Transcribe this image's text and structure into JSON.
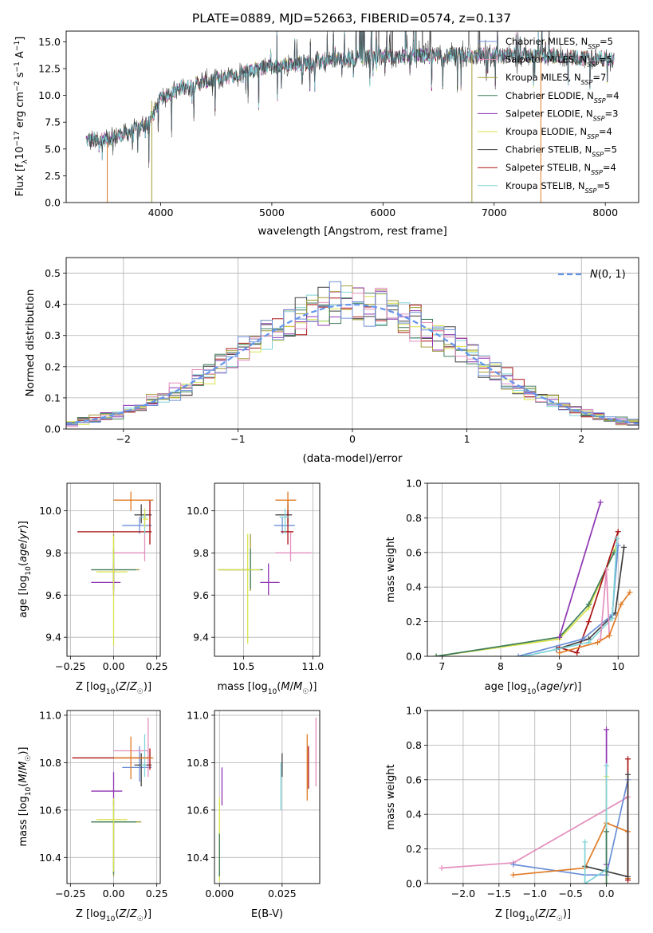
{
  "figure": {
    "title": "PLATE=0889, MJD=52663, FIBERID=0574, z=0.137"
  },
  "colors": {
    "Chabrier MILES": "#6b8fd8",
    "Salpeter MILES": "#e48ebd",
    "Kroupa MILES": "#a19b36",
    "Chabrier ELODIE": "#3f7d5b",
    "Salpeter ELODIE": "#8f35b3",
    "Kroupa ELODIE": "#d9e34a",
    "Chabrier STELIB": "#404040",
    "Salpeter STELIB": "#aa1111",
    "Kroupa STELIB": "#7fd3d8",
    "gaussian": "#6495ed",
    "orange": "#e07b25"
  },
  "chart_data": [
    {
      "id": "spectrum",
      "type": "line",
      "xlabel": "wavelength [Angstrom, rest frame]",
      "ylabel": "Flux [f_λ10^-17 erg cm^-2 s^-1 A^-1]",
      "xlim": [
        3150,
        8300
      ],
      "ylim": [
        0,
        16
      ],
      "xticks": [
        4000,
        5000,
        6000,
        7000,
        8000
      ],
      "yticks": [
        0.0,
        2.5,
        5.0,
        7.5,
        10.0,
        12.5,
        15.0
      ],
      "grid": false,
      "legend": "upper right",
      "series_names": [
        "Chabrier MILES, N_SSP=5",
        "Salpeter MILES, N_SSP=5",
        "Kroupa MILES, N_SSP=7",
        "Chabrier ELODIE, N_SSP=4",
        "Salpeter ELODIE, N_SSP=3",
        "Kroupa ELODIE, N_SSP=4",
        "Chabrier STELIB, N_SSP=5",
        "Salpeter STELIB, N_SSP=4",
        "Kroupa STELIB, N_SSP=5"
      ],
      "continuum": {
        "x": [
          3330,
          3500,
          3700,
          3900,
          4000,
          4200,
          4500,
          4800,
          5000,
          5300,
          5600,
          6000,
          6500,
          7000,
          7500,
          8000,
          8080
        ],
        "y": [
          5.8,
          5.9,
          6.5,
          7.5,
          9.8,
          10.8,
          11.5,
          12.3,
          12.7,
          13.0,
          13.3,
          13.7,
          13.7,
          13.8,
          13.7,
          13.4,
          13.3
        ]
      },
      "dropouts": [
        3520,
        3920,
        6800,
        7420
      ]
    },
    {
      "id": "residuals",
      "type": "line",
      "xlabel": "(data-model)/error",
      "ylabel": "Normed distribution",
      "xlim": [
        -2.5,
        2.5
      ],
      "ylim": [
        0,
        0.55
      ],
      "xticks": [
        -2,
        -1,
        0,
        1,
        2
      ],
      "yticks": [
        0.0,
        0.1,
        0.2,
        0.3,
        0.4,
        0.5
      ],
      "grid": true,
      "legend": "upper right",
      "gaussian_label": "N(0,1)",
      "bin_width": 0.1
    },
    {
      "id": "age-vs-Z",
      "type": "scatter",
      "xlabel": "Z [log10(Z/Z☉)]",
      "ylabel": "age  [log10(age/yr)]",
      "xlim": [
        -0.27,
        0.27
      ],
      "ylim": [
        9.31,
        10.13
      ],
      "xticks": [
        -0.25,
        0.0,
        0.25
      ],
      "yticks": [
        9.4,
        9.6,
        9.8,
        10.0
      ],
      "grid": true,
      "points": [
        {
          "model": "Chabrier MILES",
          "x": 0.15,
          "y": 9.93,
          "xerr": [
            0.1,
            0.07
          ],
          "yerr": [
            0.04,
            0.04
          ]
        },
        {
          "model": "Salpeter MILES",
          "x": 0.18,
          "y": 9.8,
          "xerr": [
            0.18,
            0.0
          ],
          "yerr": [
            0.04,
            0.1
          ]
        },
        {
          "model": "Kroupa MILES",
          "x": 0.0,
          "y": 9.72,
          "xerr": [
            0.13,
            0.15
          ],
          "yerr": [
            0.1,
            0.17
          ]
        },
        {
          "model": "Chabrier ELODIE",
          "x": 0.0,
          "y": 9.72,
          "xerr": [
            0.13,
            0.13
          ],
          "yerr": [
            0.09,
            0.1
          ]
        },
        {
          "model": "Salpeter ELODIE",
          "x": 0.0,
          "y": 9.66,
          "xerr": [
            0.13,
            0.04
          ],
          "yerr": [
            0.06,
            0.09
          ]
        },
        {
          "model": "Kroupa ELODIE",
          "x": 0.0,
          "y": 9.71,
          "xerr": [
            0.1,
            0.08
          ],
          "yerr": [
            0.35,
            0.17
          ]
        },
        {
          "model": "Chabrier STELIB",
          "x": 0.16,
          "y": 9.98,
          "xerr": [
            0.04,
            0.06
          ],
          "yerr": [
            0.04,
            0.05
          ]
        },
        {
          "model": "Salpeter STELIB",
          "x": 0.21,
          "y": 9.9,
          "xerr": [
            0.42,
            0.01
          ],
          "yerr": [
            0.06,
            0.15
          ]
        },
        {
          "model": "Kroupa STELIB",
          "x": 0.18,
          "y": 9.97,
          "xerr": [
            0.02,
            0.01
          ],
          "yerr": [
            0.08,
            0.04
          ]
        },
        {
          "model": "orange",
          "x": 0.1,
          "y": 10.05,
          "xerr": [
            0.1,
            0.13
          ],
          "yerr": [
            0.05,
            0.04
          ]
        },
        {
          "model": "Kroupa ELODIE",
          "x": 0.18,
          "y": 9.96,
          "xerr": [
            0.01,
            0.02
          ],
          "yerr": [
            0.04,
            0.05
          ]
        }
      ]
    },
    {
      "id": "age-vs-mass",
      "type": "scatter",
      "xlabel": "mass [log10(M/M☉)]",
      "ylabel": "",
      "xlim": [
        10.29,
        11.05
      ],
      "ylim": [
        9.31,
        10.13
      ],
      "xticks": [
        10.5,
        11.0
      ],
      "yticks": [
        9.4,
        9.6,
        9.8,
        10.0
      ],
      "grid": true,
      "points": [
        {
          "model": "Chabrier MILES",
          "x": 10.78,
          "y": 9.93,
          "xerr": [
            0.06,
            0.09
          ],
          "yerr": [
            0.04,
            0.04
          ]
        },
        {
          "model": "Salpeter MILES",
          "x": 10.84,
          "y": 9.8,
          "xerr": [
            0.11,
            0.15
          ],
          "yerr": [
            0.04,
            0.1
          ]
        },
        {
          "model": "Kroupa MILES",
          "x": 10.55,
          "y": 9.72,
          "xerr": [
            0.23,
            0.0
          ],
          "yerr": [
            0.1,
            0.17
          ]
        },
        {
          "model": "Chabrier ELODIE",
          "x": 10.55,
          "y": 9.72,
          "xerr": [
            0.22,
            0.09
          ],
          "yerr": [
            0.09,
            0.1
          ]
        },
        {
          "model": "Salpeter ELODIE",
          "x": 10.68,
          "y": 9.66,
          "xerr": [
            0.06,
            0.08
          ],
          "yerr": [
            0.06,
            0.09
          ]
        },
        {
          "model": "Kroupa ELODIE",
          "x": 10.53,
          "y": 9.72,
          "xerr": [
            0.22,
            0.09
          ],
          "yerr": [
            0.35,
            0.17
          ]
        },
        {
          "model": "Chabrier STELIB",
          "x": 10.82,
          "y": 9.98,
          "xerr": [
            0.09,
            0.03
          ],
          "yerr": [
            0.04,
            0.05
          ]
        },
        {
          "model": "Salpeter STELIB",
          "x": 10.82,
          "y": 9.9,
          "xerr": [
            0.05,
            0.04
          ],
          "yerr": [
            0.06,
            0.15
          ]
        },
        {
          "model": "Kroupa STELIB",
          "x": 10.8,
          "y": 9.97,
          "xerr": [
            0.04,
            0.03
          ],
          "yerr": [
            0.08,
            0.04
          ]
        },
        {
          "model": "orange",
          "x": 10.82,
          "y": 10.05,
          "xerr": [
            0.09,
            0.06
          ],
          "yerr": [
            0.05,
            0.04
          ]
        }
      ]
    },
    {
      "id": "weight-vs-age",
      "type": "line",
      "xlabel": "age  [log10(age/yr)]",
      "ylabel": "mass weight",
      "xlim": [
        6.75,
        10.35
      ],
      "ylim": [
        0,
        1.0
      ],
      "xticks": [
        7,
        8,
        9,
        10
      ],
      "yticks": [
        0.0,
        0.2,
        0.4,
        0.6,
        0.8,
        1.0
      ],
      "grid": true,
      "series": [
        {
          "model": "Kroupa ELODIE",
          "x": [
            6.9,
            9.0,
            9.5,
            9.95
          ],
          "y": [
            0.0,
            0.1,
            0.28,
            0.62
          ]
        },
        {
          "model": "Chabrier ELODIE",
          "x": [
            6.9,
            9.0,
            9.5,
            9.93
          ],
          "y": [
            0.0,
            0.11,
            0.3,
            0.6
          ]
        },
        {
          "model": "Salpeter ELODIE",
          "x": [
            9.0,
            9.7
          ],
          "y": [
            0.11,
            0.89
          ]
        },
        {
          "model": "Salpeter STELIB",
          "x": [
            9.0,
            9.3,
            9.5,
            10.0
          ],
          "y": [
            0.05,
            0.02,
            0.2,
            0.72
          ]
        },
        {
          "model": "Chabrier STELIB",
          "x": [
            8.95,
            9.5,
            9.95,
            10.1
          ],
          "y": [
            0.04,
            0.1,
            0.25,
            0.63
          ]
        },
        {
          "model": "Chabrier MILES",
          "x": [
            8.3,
            9.4,
            9.9,
            10.0
          ],
          "y": [
            0.0,
            0.1,
            0.24,
            0.64
          ]
        },
        {
          "model": "Kroupa STELIB",
          "x": [
            8.4,
            9.5,
            9.9,
            9.98
          ],
          "y": [
            0.0,
            0.08,
            0.22,
            0.68
          ]
        },
        {
          "model": "Salpeter MILES",
          "x": [
            9.7,
            9.8,
            9.85
          ],
          "y": [
            0.1,
            0.5,
            0.12
          ]
        },
        {
          "model": "orange",
          "x": [
            9.0,
            9.65,
            9.85,
            10.05,
            10.2
          ],
          "y": [
            0.02,
            0.08,
            0.12,
            0.3,
            0.37
          ]
        }
      ]
    },
    {
      "id": "mass-vs-Z",
      "type": "scatter",
      "xlabel": "Z [log10(Z/Z☉)]",
      "ylabel": "mass [log10(M/M☉)]",
      "xlim": [
        -0.27,
        0.27
      ],
      "ylim": [
        10.29,
        11.02
      ],
      "xticks": [
        -0.25,
        0.0,
        0.25
      ],
      "yticks": [
        10.4,
        10.6,
        10.8,
        11.0
      ],
      "grid": true,
      "points": [
        {
          "model": "Chabrier MILES",
          "x": 0.15,
          "y": 10.78,
          "xerr": [
            0.1,
            0.07
          ],
          "yerr": [
            0.06,
            0.09
          ]
        },
        {
          "model": "Salpeter MILES",
          "x": 0.2,
          "y": 10.85,
          "xerr": [
            0.2,
            0.0
          ],
          "yerr": [
            0.11,
            0.14
          ]
        },
        {
          "model": "Kroupa MILES",
          "x": 0.0,
          "y": 10.55,
          "xerr": [
            0.13,
            0.16
          ],
          "yerr": [
            0.23,
            0.0
          ]
        },
        {
          "model": "Chabrier ELODIE",
          "x": 0.0,
          "y": 10.55,
          "xerr": [
            0.13,
            0.13
          ],
          "yerr": [
            0.22,
            0.09
          ]
        },
        {
          "model": "Salpeter ELODIE",
          "x": 0.0,
          "y": 10.68,
          "xerr": [
            0.13,
            0.05
          ],
          "yerr": [
            0.06,
            0.08
          ]
        },
        {
          "model": "Kroupa ELODIE",
          "x": 0.0,
          "y": 10.56,
          "xerr": [
            0.1,
            0.08
          ],
          "yerr": [
            0.22,
            0.09
          ]
        },
        {
          "model": "Chabrier STELIB",
          "x": 0.16,
          "y": 10.79,
          "xerr": [
            0.04,
            0.06
          ],
          "yerr": [
            0.09,
            0.05
          ]
        },
        {
          "model": "Salpeter STELIB",
          "x": 0.21,
          "y": 10.82,
          "xerr": [
            0.45,
            0.01
          ],
          "yerr": [
            0.05,
            0.04
          ]
        },
        {
          "model": "Kroupa STELIB",
          "x": 0.18,
          "y": 10.79,
          "xerr": [
            0.02,
            0.01
          ],
          "yerr": [
            0.05,
            0.13
          ]
        },
        {
          "model": "orange",
          "x": 0.1,
          "y": 10.82,
          "xerr": [
            0.1,
            0.13
          ],
          "yerr": [
            0.09,
            0.09
          ]
        }
      ]
    },
    {
      "id": "mass-vs-EBV",
      "type": "scatter",
      "xlabel": "E(B-V)",
      "ylabel": "",
      "xlim": [
        -0.002,
        0.04
      ],
      "ylim": [
        10.29,
        11.02
      ],
      "xticks": [
        0.0,
        0.025
      ],
      "xtick_labels": [
        "0.000",
        "0.025"
      ],
      "yticks": [
        10.4,
        10.6,
        10.8,
        11.0
      ],
      "grid": true,
      "points": [
        {
          "model": "Salpeter ELODIE",
          "x": 0.001,
          "y": 10.68,
          "yerr": [
            0.06,
            0.1
          ]
        },
        {
          "model": "Kroupa ELODIE",
          "x": 0.0,
          "y": 10.5,
          "yerr": [
            0.2,
            0.15
          ]
        },
        {
          "model": "Chabrier ELODIE",
          "x": 0.0,
          "y": 10.4,
          "yerr": [
            0.08,
            0.1
          ]
        },
        {
          "model": "Kroupa STELIB",
          "x": 0.0245,
          "y": 10.7,
          "yerr": [
            0.1,
            0.1
          ]
        },
        {
          "model": "Chabrier STELIB",
          "x": 0.025,
          "y": 10.78,
          "yerr": [
            0.04,
            0.06
          ]
        },
        {
          "model": "orange",
          "x": 0.035,
          "y": 10.78,
          "yerr": [
            0.14,
            0.14
          ]
        },
        {
          "model": "Salpeter STELIB",
          "x": 0.0355,
          "y": 10.77,
          "yerr": [
            0.08,
            0.1
          ]
        },
        {
          "model": "Salpeter MILES",
          "x": 0.0385,
          "y": 10.84,
          "yerr": [
            0.14,
            0.15
          ]
        }
      ]
    },
    {
      "id": "weight-vs-Z",
      "type": "line",
      "xlabel": "Z [log10(Z/Z☉)]",
      "ylabel": "mass weight",
      "xlim": [
        -2.5,
        0.45
      ],
      "ylim": [
        0,
        1.0
      ],
      "xticks": [
        -2.0,
        -1.5,
        -1.0,
        -0.5,
        0.0
      ],
      "yticks": [
        0.0,
        0.2,
        0.4,
        0.6,
        0.8,
        1.0
      ],
      "grid": true,
      "series": [
        {
          "model": "Salpeter MILES",
          "x": [
            -2.3,
            -1.3,
            0.3
          ],
          "y": [
            0.09,
            0.12,
            0.5
          ]
        },
        {
          "model": "Chabrier MILES",
          "x": [
            -1.3,
            -0.3,
            0.0,
            0.3
          ],
          "y": [
            0.11,
            0.05,
            0.05,
            0.6
          ]
        },
        {
          "model": "orange",
          "x": [
            -1.3,
            -0.3,
            0.0,
            0.3,
            0.3
          ],
          "y": [
            0.05,
            0.09,
            0.35,
            0.3,
            0.03
          ]
        },
        {
          "model": "Salpeter ELODIE",
          "x": [
            0.0,
            0.0
          ],
          "y": [
            0.89,
            0.11
          ]
        },
        {
          "model": "Kroupa ELODIE",
          "x": [
            0.0,
            0.0
          ],
          "y": [
            0.62,
            0.0
          ]
        },
        {
          "model": "Salpeter STELIB",
          "x": [
            0.3,
            0.3
          ],
          "y": [
            0.72,
            0.02
          ]
        },
        {
          "model": "Chabrier STELIB",
          "x": [
            -0.3,
            0.3,
            0.3
          ],
          "y": [
            0.1,
            0.04,
            0.63
          ]
        },
        {
          "model": "Kroupa STELIB",
          "x": [
            -0.3,
            -0.3,
            0.0,
            0.0
          ],
          "y": [
            0.24,
            0.0,
            0.08,
            0.68
          ]
        },
        {
          "model": "Chabrier ELODIE",
          "x": [
            0.0,
            0.0
          ],
          "y": [
            0.3,
            0.0
          ]
        }
      ]
    }
  ]
}
